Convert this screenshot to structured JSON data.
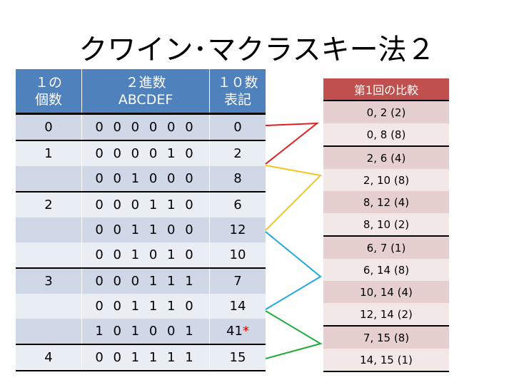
{
  "title": "クワイン･マクラスキー法２",
  "left_table": {
    "headers": [
      "１の\n個数",
      "２進数\nABCDEF",
      "１０数\n表記"
    ],
    "rows": [
      {
        "count": "0",
        "binary": "0 0 0 0 0 0",
        "decimal": "0",
        "mark": ""
      },
      {
        "count": "1",
        "binary": "0 0 0 0 1 0",
        "decimal": "2",
        "mark": ""
      },
      {
        "count": "",
        "binary": "0 0 1 0 0 0",
        "decimal": "8",
        "mark": ""
      },
      {
        "count": "2",
        "binary": "0 0 0 1 1 0",
        "decimal": "6",
        "mark": ""
      },
      {
        "count": "",
        "binary": "0 0 1 1 0 0",
        "decimal": "12",
        "mark": ""
      },
      {
        "count": "",
        "binary": "0 0 1 0 1 0",
        "decimal": "10",
        "mark": ""
      },
      {
        "count": "3",
        "binary": "0 0 0 1 1 1",
        "decimal": "7",
        "mark": ""
      },
      {
        "count": "",
        "binary": "0 0 1 1 1 0",
        "decimal": "14",
        "mark": ""
      },
      {
        "count": "",
        "binary": "1 0 1 0 0 1",
        "decimal": "41",
        "mark": "*"
      },
      {
        "count": "4",
        "binary": "0 0 1 1 1 1",
        "decimal": "15",
        "mark": ""
      }
    ]
  },
  "right_table": {
    "header": "第1回の比較",
    "rows": [
      "0, 2 (2)",
      "0, 8 (8)",
      "2, 6 (4)",
      "2, 10 (8)",
      "8, 12 (4)",
      "8, 10 (2)",
      "6, 7 (1)",
      "6, 14 (8)",
      "10, 14 (4)",
      "12, 14 (2)",
      "7, 15 (8)",
      "14, 15 (1)"
    ]
  },
  "connector_colors": {
    "red": "#e02020",
    "yellow": "#f5c518",
    "blue": "#1ea7e0",
    "green": "#1faa3c"
  }
}
